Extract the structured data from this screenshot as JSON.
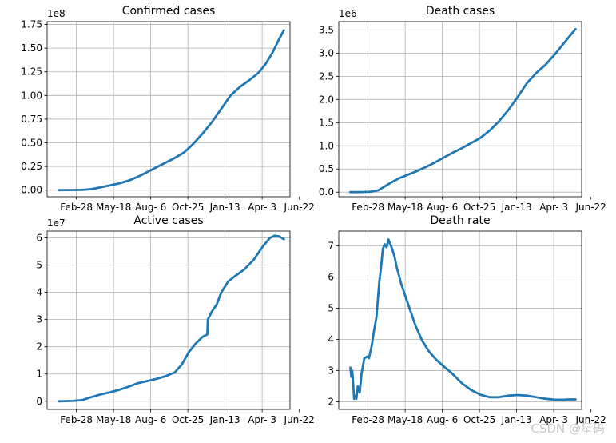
{
  "watermark": "CSDN @星码",
  "chart_data": [
    {
      "type": "line",
      "title": "Confirmed cases",
      "offset_label": "1e8",
      "xlabel": "",
      "ylabel": "",
      "xlim": [
        -25,
        498
      ],
      "ylim": [
        -0.07,
        1.78
      ],
      "x_ticks": [
        {
          "x": 38,
          "label": "Feb-28"
        },
        {
          "x": 118,
          "label": "May-18"
        },
        {
          "x": 198,
          "label": "Aug- 6"
        },
        {
          "x": 278,
          "label": "Oct-25"
        },
        {
          "x": 358,
          "label": "Jan-13"
        },
        {
          "x": 438,
          "label": "Apr- 3"
        },
        {
          "x": 518,
          "label": "Jun-22"
        }
      ],
      "y_ticks": [
        0.0,
        0.25,
        0.5,
        0.75,
        1.0,
        1.25,
        1.5,
        1.75
      ],
      "y_tick_labels": [
        "0.00",
        "0.25",
        "0.50",
        "0.75",
        "1.00",
        "1.25",
        "1.50",
        "1.75"
      ],
      "grid": true,
      "color": "#1f77b4",
      "series": [
        {
          "x": [
            0,
            25,
            50,
            70,
            90,
            110,
            130,
            150,
            170,
            190,
            210,
            230,
            250,
            270,
            290,
            310,
            330,
            350,
            370,
            390,
            410,
            430,
            445,
            460,
            475,
            485
          ],
          "values": [
            0.0,
            0.001,
            0.003,
            0.01,
            0.03,
            0.05,
            0.07,
            0.1,
            0.14,
            0.19,
            0.24,
            0.29,
            0.34,
            0.4,
            0.49,
            0.6,
            0.72,
            0.86,
            1.0,
            1.09,
            1.16,
            1.24,
            1.33,
            1.45,
            1.6,
            1.69
          ]
        }
      ]
    },
    {
      "type": "line",
      "title": "Death cases",
      "offset_label": "1e6",
      "xlabel": "",
      "ylabel": "",
      "xlim": [
        -25,
        498
      ],
      "ylim": [
        -0.1,
        3.68
      ],
      "x_ticks": [
        {
          "x": 38,
          "label": "Feb-28"
        },
        {
          "x": 118,
          "label": "May-18"
        },
        {
          "x": 198,
          "label": "Aug- 6"
        },
        {
          "x": 278,
          "label": "Oct-25"
        },
        {
          "x": 358,
          "label": "Jan-13"
        },
        {
          "x": 438,
          "label": "Apr- 3"
        },
        {
          "x": 518,
          "label": "Jun-22"
        }
      ],
      "y_ticks": [
        0.0,
        0.5,
        1.0,
        1.5,
        2.0,
        2.5,
        3.0,
        3.5
      ],
      "y_tick_labels": [
        "0.0",
        "0.5",
        "1.0",
        "1.5",
        "2.0",
        "2.5",
        "3.0",
        "3.5"
      ],
      "grid": true,
      "color": "#1f77b4",
      "series": [
        {
          "x": [
            0,
            25,
            45,
            60,
            75,
            90,
            105,
            120,
            140,
            160,
            180,
            200,
            220,
            240,
            260,
            280,
            300,
            320,
            340,
            360,
            380,
            400,
            420,
            440,
            460,
            475,
            485
          ],
          "values": [
            0.0,
            0.001,
            0.01,
            0.04,
            0.13,
            0.22,
            0.3,
            0.36,
            0.44,
            0.53,
            0.63,
            0.74,
            0.85,
            0.95,
            1.06,
            1.17,
            1.33,
            1.53,
            1.77,
            2.05,
            2.35,
            2.57,
            2.75,
            2.97,
            3.22,
            3.4,
            3.52
          ]
        }
      ]
    },
    {
      "type": "line",
      "title": "Active cases",
      "offset_label": "1e7",
      "xlabel": "",
      "ylabel": "",
      "xlim": [
        -25,
        498
      ],
      "ylim": [
        -0.3,
        6.25
      ],
      "x_ticks": [
        {
          "x": 38,
          "label": "Feb-28"
        },
        {
          "x": 118,
          "label": "May-18"
        },
        {
          "x": 198,
          "label": "Aug- 6"
        },
        {
          "x": 278,
          "label": "Oct-25"
        },
        {
          "x": 358,
          "label": "Jan-13"
        },
        {
          "x": 438,
          "label": "Apr- 3"
        },
        {
          "x": 518,
          "label": "Jun-22"
        }
      ],
      "y_ticks": [
        0,
        1,
        2,
        3,
        4,
        5,
        6
      ],
      "y_tick_labels": [
        "0",
        "1",
        "2",
        "3",
        "4",
        "5",
        "6"
      ],
      "grid": true,
      "color": "#1f77b4",
      "series": [
        {
          "x": [
            0,
            30,
            50,
            70,
            90,
            110,
            130,
            150,
            170,
            190,
            210,
            230,
            250,
            265,
            280,
            295,
            310,
            320,
            321,
            330,
            340,
            350,
            365,
            380,
            400,
            420,
            440,
            455,
            465,
            475,
            485
          ],
          "values": [
            0.0,
            0.01,
            0.04,
            0.15,
            0.25,
            0.33,
            0.42,
            0.53,
            0.66,
            0.74,
            0.82,
            0.92,
            1.06,
            1.35,
            1.8,
            2.12,
            2.37,
            2.45,
            3.0,
            3.3,
            3.55,
            4.0,
            4.4,
            4.6,
            4.85,
            5.2,
            5.7,
            6.0,
            6.08,
            6.05,
            5.95
          ]
        }
      ]
    },
    {
      "type": "line",
      "title": "Death rate",
      "offset_label": "",
      "xlabel": "",
      "ylabel": "",
      "xlim": [
        -25,
        498
      ],
      "ylim": [
        1.76,
        7.47
      ],
      "x_ticks": [
        {
          "x": 38,
          "label": "Feb-28"
        },
        {
          "x": 118,
          "label": "May-18"
        },
        {
          "x": 198,
          "label": "Aug- 6"
        },
        {
          "x": 278,
          "label": "Oct-25"
        },
        {
          "x": 358,
          "label": "Jan-13"
        },
        {
          "x": 438,
          "label": "Apr- 3"
        },
        {
          "x": 518,
          "label": "Jun-22"
        }
      ],
      "y_ticks": [
        2,
        3,
        4,
        5,
        6,
        7
      ],
      "y_tick_labels": [
        "2",
        "3",
        "4",
        "5",
        "6",
        "7"
      ],
      "grid": true,
      "color": "#1f77b4",
      "series": [
        {
          "x": [
            0,
            2,
            4,
            6,
            8,
            10,
            13,
            16,
            20,
            24,
            30,
            36,
            40,
            46,
            50,
            56,
            62,
            66,
            70,
            74,
            78,
            82,
            86,
            90,
            95,
            100,
            110,
            125,
            140,
            155,
            170,
            185,
            200,
            220,
            240,
            260,
            280,
            300,
            320,
            340,
            360,
            380,
            400,
            420,
            440,
            460,
            470,
            485
          ],
          "values": [
            3.1,
            2.8,
            3.0,
            2.6,
            2.1,
            2.2,
            2.1,
            2.5,
            2.3,
            2.9,
            3.4,
            3.45,
            3.4,
            3.8,
            4.2,
            4.7,
            5.8,
            6.3,
            6.9,
            7.05,
            6.95,
            7.2,
            7.05,
            6.9,
            6.65,
            6.3,
            5.75,
            5.1,
            4.45,
            3.95,
            3.6,
            3.35,
            3.15,
            2.9,
            2.6,
            2.38,
            2.23,
            2.15,
            2.15,
            2.2,
            2.22,
            2.2,
            2.15,
            2.1,
            2.07,
            2.07,
            2.08,
            2.08
          ]
        }
      ]
    }
  ]
}
